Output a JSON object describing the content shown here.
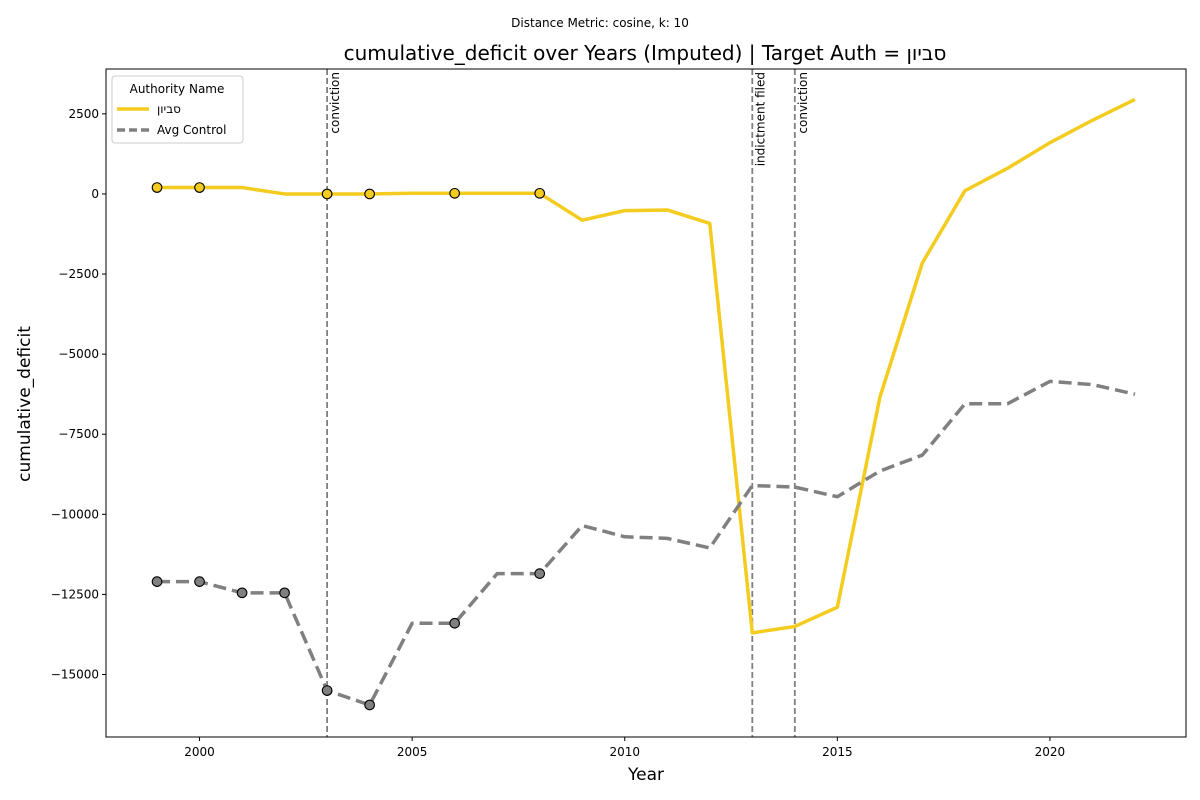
{
  "chart_data": {
    "type": "line",
    "suptitle": "Distance Metric: cosine, k: 10",
    "title": "cumulative_deficit over Years (Imputed) | Target Auth = סביון",
    "xlabel": "Year",
    "ylabel": "cumulative_deficit",
    "xlim": [
      1997.8,
      2023.2
    ],
    "ylim": [
      -16950,
      3900
    ],
    "x_ticks": [
      2000,
      2005,
      2010,
      2015,
      2020
    ],
    "y_ticks": [
      2500,
      0,
      -2500,
      -5000,
      -7500,
      -10000,
      -12500,
      -15000
    ],
    "y_tick_labels": [
      "2500",
      "0",
      "−2500",
      "−5000",
      "−7500",
      "−10000",
      "−12500",
      "−15000"
    ],
    "grid": false,
    "legend": {
      "title": "Authority Name",
      "placement": "top-left"
    },
    "events": [
      {
        "x": 2003,
        "label": "conviction"
      },
      {
        "x": 2013,
        "label": "indictment filed"
      },
      {
        "x": 2014,
        "label": "conviction"
      }
    ],
    "series": [
      {
        "name": "סביון",
        "color": "#f4cc1f",
        "style": "solid",
        "x": [
          1999,
          2000,
          2001,
          2002,
          2003,
          2004,
          2005,
          2006,
          2007,
          2008,
          2009,
          2010,
          2011,
          2012,
          2013,
          2014,
          2015,
          2016,
          2017,
          2018,
          2019,
          2020,
          2021,
          2022
        ],
        "y": [
          200,
          200,
          200,
          0,
          0,
          0,
          20,
          20,
          20,
          20,
          -820,
          -520,
          -500,
          -920,
          -13700,
          -13500,
          -12900,
          -6350,
          -2150,
          100,
          800,
          1600,
          2300,
          2950
        ],
        "observed_x": [
          1999,
          2000,
          2003,
          2004,
          2006,
          2008
        ]
      },
      {
        "name": "Avg Control",
        "color": "#808080",
        "style": "dashed",
        "x": [
          1999,
          2000,
          2001,
          2002,
          2003,
          2004,
          2005,
          2006,
          2007,
          2008,
          2009,
          2010,
          2011,
          2012,
          2013,
          2014,
          2015,
          2016,
          2017,
          2018,
          2019,
          2020,
          2021,
          2022
        ],
        "y": [
          -12100,
          -12100,
          -12450,
          -12450,
          -15500,
          -15950,
          -13400,
          -13400,
          -11850,
          -11850,
          -10350,
          -10700,
          -10750,
          -11050,
          -9100,
          -9150,
          -9450,
          -8650,
          -8150,
          -6550,
          -6550,
          -5850,
          -5950,
          -6250
        ],
        "observed_x": [
          1999,
          2000,
          2001,
          2002,
          2003,
          2004,
          2006,
          2008
        ]
      }
    ]
  }
}
